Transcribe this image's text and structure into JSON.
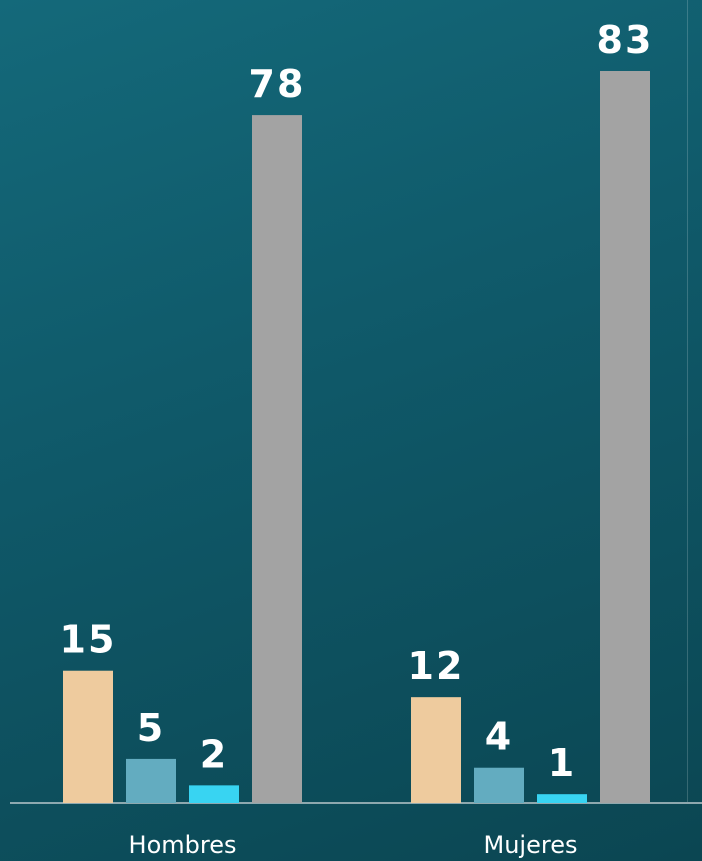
{
  "chart_data": {
    "type": "bar",
    "categories": [
      "Hombres",
      "Mujeres"
    ],
    "series": [
      {
        "values": [
          15,
          12
        ],
        "color": "#eecb9e"
      },
      {
        "values": [
          5,
          4
        ],
        "color": "#63acc0"
      },
      {
        "values": [
          2,
          1
        ],
        "color": "#38d4f2"
      },
      {
        "values": [
          78,
          83
        ],
        "color": "#a3a3a3"
      }
    ],
    "ylim": [
      0,
      83
    ],
    "grid": false,
    "legend": "none",
    "data_labels": true,
    "title": "",
    "xlabel": "",
    "ylabel": ""
  }
}
